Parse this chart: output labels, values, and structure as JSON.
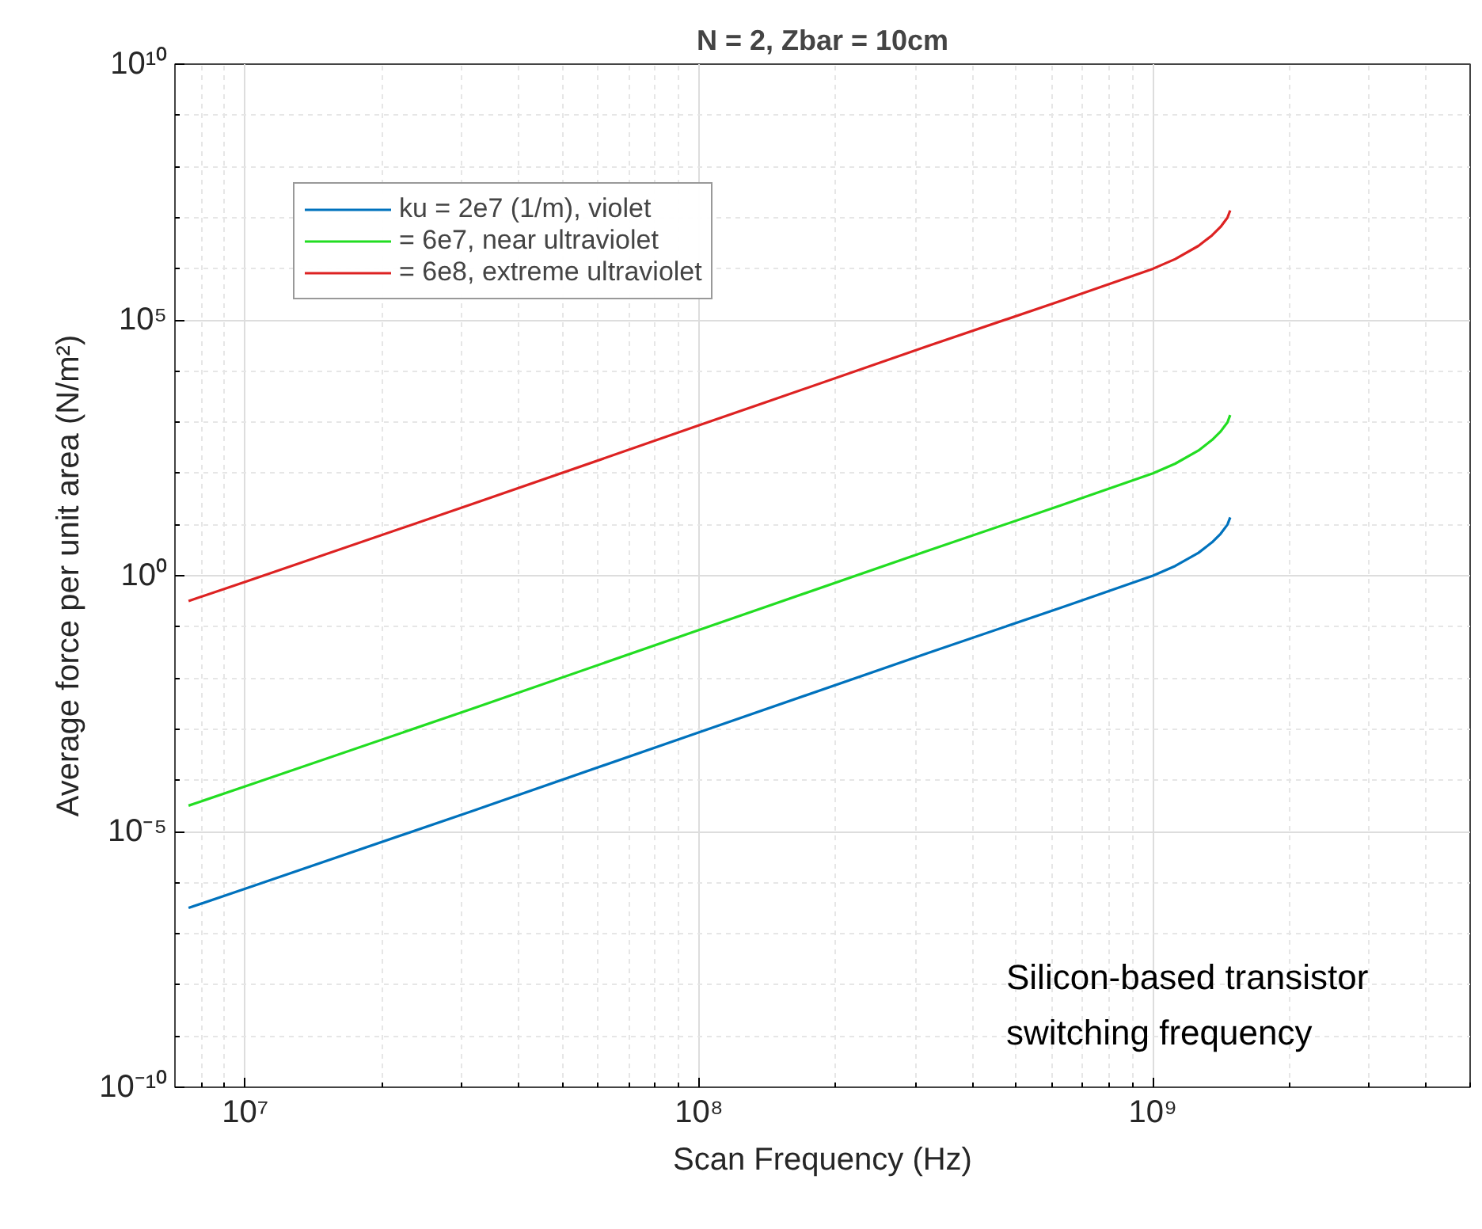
{
  "chart_data": {
    "type": "line",
    "title": "N = 2, Zbar = 10cm",
    "xlabel": "Scan Frequency (Hz)",
    "ylabel": "Average force per unit area (N/m²)",
    "x": [
      7500000.0,
      10000000.0,
      32000000.0,
      100000000.0,
      320000000.0,
      630000000.0,
      1000000000.0,
      1120000000.0,
      1260000000.0,
      1350000000.0,
      1410000000.0,
      1460000000.0,
      1480000000.0
    ],
    "series": [
      {
        "name": "ku = 2e7 (1/m), violet",
        "color": "#0072bd",
        "values": [
          3.2e-07,
          7.6e-07,
          2.6e-05,
          0.00087,
          0.031,
          0.24,
          1,
          1.55,
          2.8,
          4.5,
          6.6,
          10,
          13.8
        ]
      },
      {
        "name": "= 6e7, near ultraviolet",
        "color": "#22dd22",
        "values": [
          3.2e-05,
          7.6e-05,
          0.0026,
          0.087,
          3.1,
          24,
          100,
          155,
          280,
          450,
          660,
          1000,
          1380
        ]
      },
      {
        "name": "= 6e8, extreme ultraviolet",
        "color": "#dd2222",
        "values": [
          0.32,
          0.76,
          26,
          870,
          31000,
          240000,
          1000000.0,
          1550000.0,
          2800000.0,
          4500000.0,
          6600000.0,
          10000000.0,
          13800000.0
        ]
      }
    ],
    "xlim": [
      7000000.0,
      5000000000.0
    ],
    "ylim": [
      1e-10,
      10000000000.0
    ],
    "xticks": [
      {
        "value": 10000000.0,
        "label": "10⁷"
      },
      {
        "value": 100000000.0,
        "label": "10⁸"
      },
      {
        "value": 1000000000.0,
        "label": "10⁹"
      }
    ],
    "yticks": [
      {
        "value": 1e-10,
        "label": "10⁻¹⁰"
      },
      {
        "value": 1e-05,
        "label": "10⁻⁵"
      },
      {
        "value": 1,
        "label": "10⁰"
      },
      {
        "value": 100000.0,
        "label": "10⁵"
      },
      {
        "value": 10000000000.0,
        "label": "10¹⁰"
      }
    ],
    "log": "xy",
    "grid": true,
    "legend": "top left",
    "line_style": "solid",
    "marker": "none",
    "annotations": [
      "Silicon-based transistor\nswitching frequency"
    ]
  }
}
